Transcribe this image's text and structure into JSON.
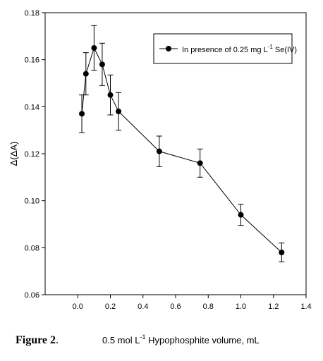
{
  "chart_data": {
    "type": "line",
    "title": "",
    "xlabel_main": "0.5 mol L",
    "xlabel_sup": "-1",
    "xlabel_rest": " Hypophosphite volume, mL",
    "ylabel": "Δ(ΔA)",
    "xlim": [
      -0.2,
      1.4
    ],
    "ylim": [
      0.06,
      0.18
    ],
    "xticks": [
      0.0,
      0.2,
      0.4,
      0.6,
      0.8,
      1.0,
      1.2,
      1.4
    ],
    "xtick_labels": [
      "0.0",
      "0.2",
      "0.4",
      "0.6",
      "0.8",
      "1.0",
      "1.2",
      "1.4"
    ],
    "yticks": [
      0.06,
      0.08,
      0.1,
      0.12,
      0.14,
      0.16,
      0.18
    ],
    "ytick_labels": [
      "0.06",
      "0.08",
      "0.10",
      "0.12",
      "0.14",
      "0.16",
      "0.18"
    ],
    "grid": false,
    "legend_position": "top-right",
    "series": [
      {
        "name_main": "In presence of 0.25 mg L",
        "name_sup": "-1",
        "name_rest": " Se(IV)",
        "x": [
          0.025,
          0.05,
          0.1,
          0.15,
          0.2,
          0.25,
          0.5,
          0.75,
          1.0,
          1.25
        ],
        "y": [
          0.137,
          0.154,
          0.165,
          0.158,
          0.145,
          0.138,
          0.121,
          0.116,
          0.094,
          0.078
        ],
        "err": [
          0.008,
          0.009,
          0.0095,
          0.009,
          0.0085,
          0.008,
          0.0065,
          0.006,
          0.0045,
          0.004
        ]
      }
    ]
  },
  "caption": {
    "figure_label": "Figure 2",
    "figure_punct": "."
  },
  "colors": {
    "line": "#000000",
    "marker": "#000000",
    "background": "#ffffff"
  }
}
